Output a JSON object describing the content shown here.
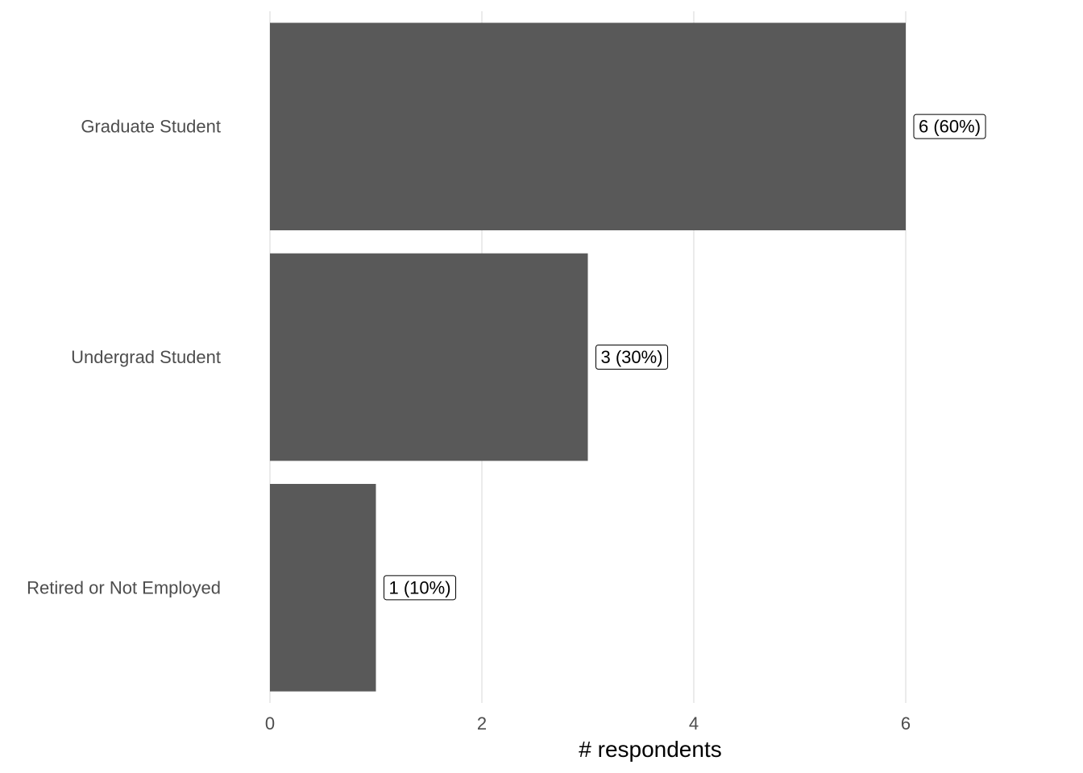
{
  "chart_data": {
    "type": "bar",
    "orientation": "horizontal",
    "categories": [
      "Graduate Student",
      "Undergrad Student",
      "Retired or Not Employed"
    ],
    "values": [
      6,
      3,
      1
    ],
    "data_labels": [
      "6 (60%)",
      "3 (30%)",
      "1 (10%)"
    ],
    "xlabel": "# respondents",
    "ylabel": "",
    "xlim": [
      0,
      7
    ],
    "xticks": [
      0,
      2,
      4,
      6
    ],
    "xtick_labels": [
      "0",
      "2",
      "4",
      "6"
    ],
    "grid": true,
    "bar_color": "#595959",
    "grid_color": "#ebebeb"
  }
}
